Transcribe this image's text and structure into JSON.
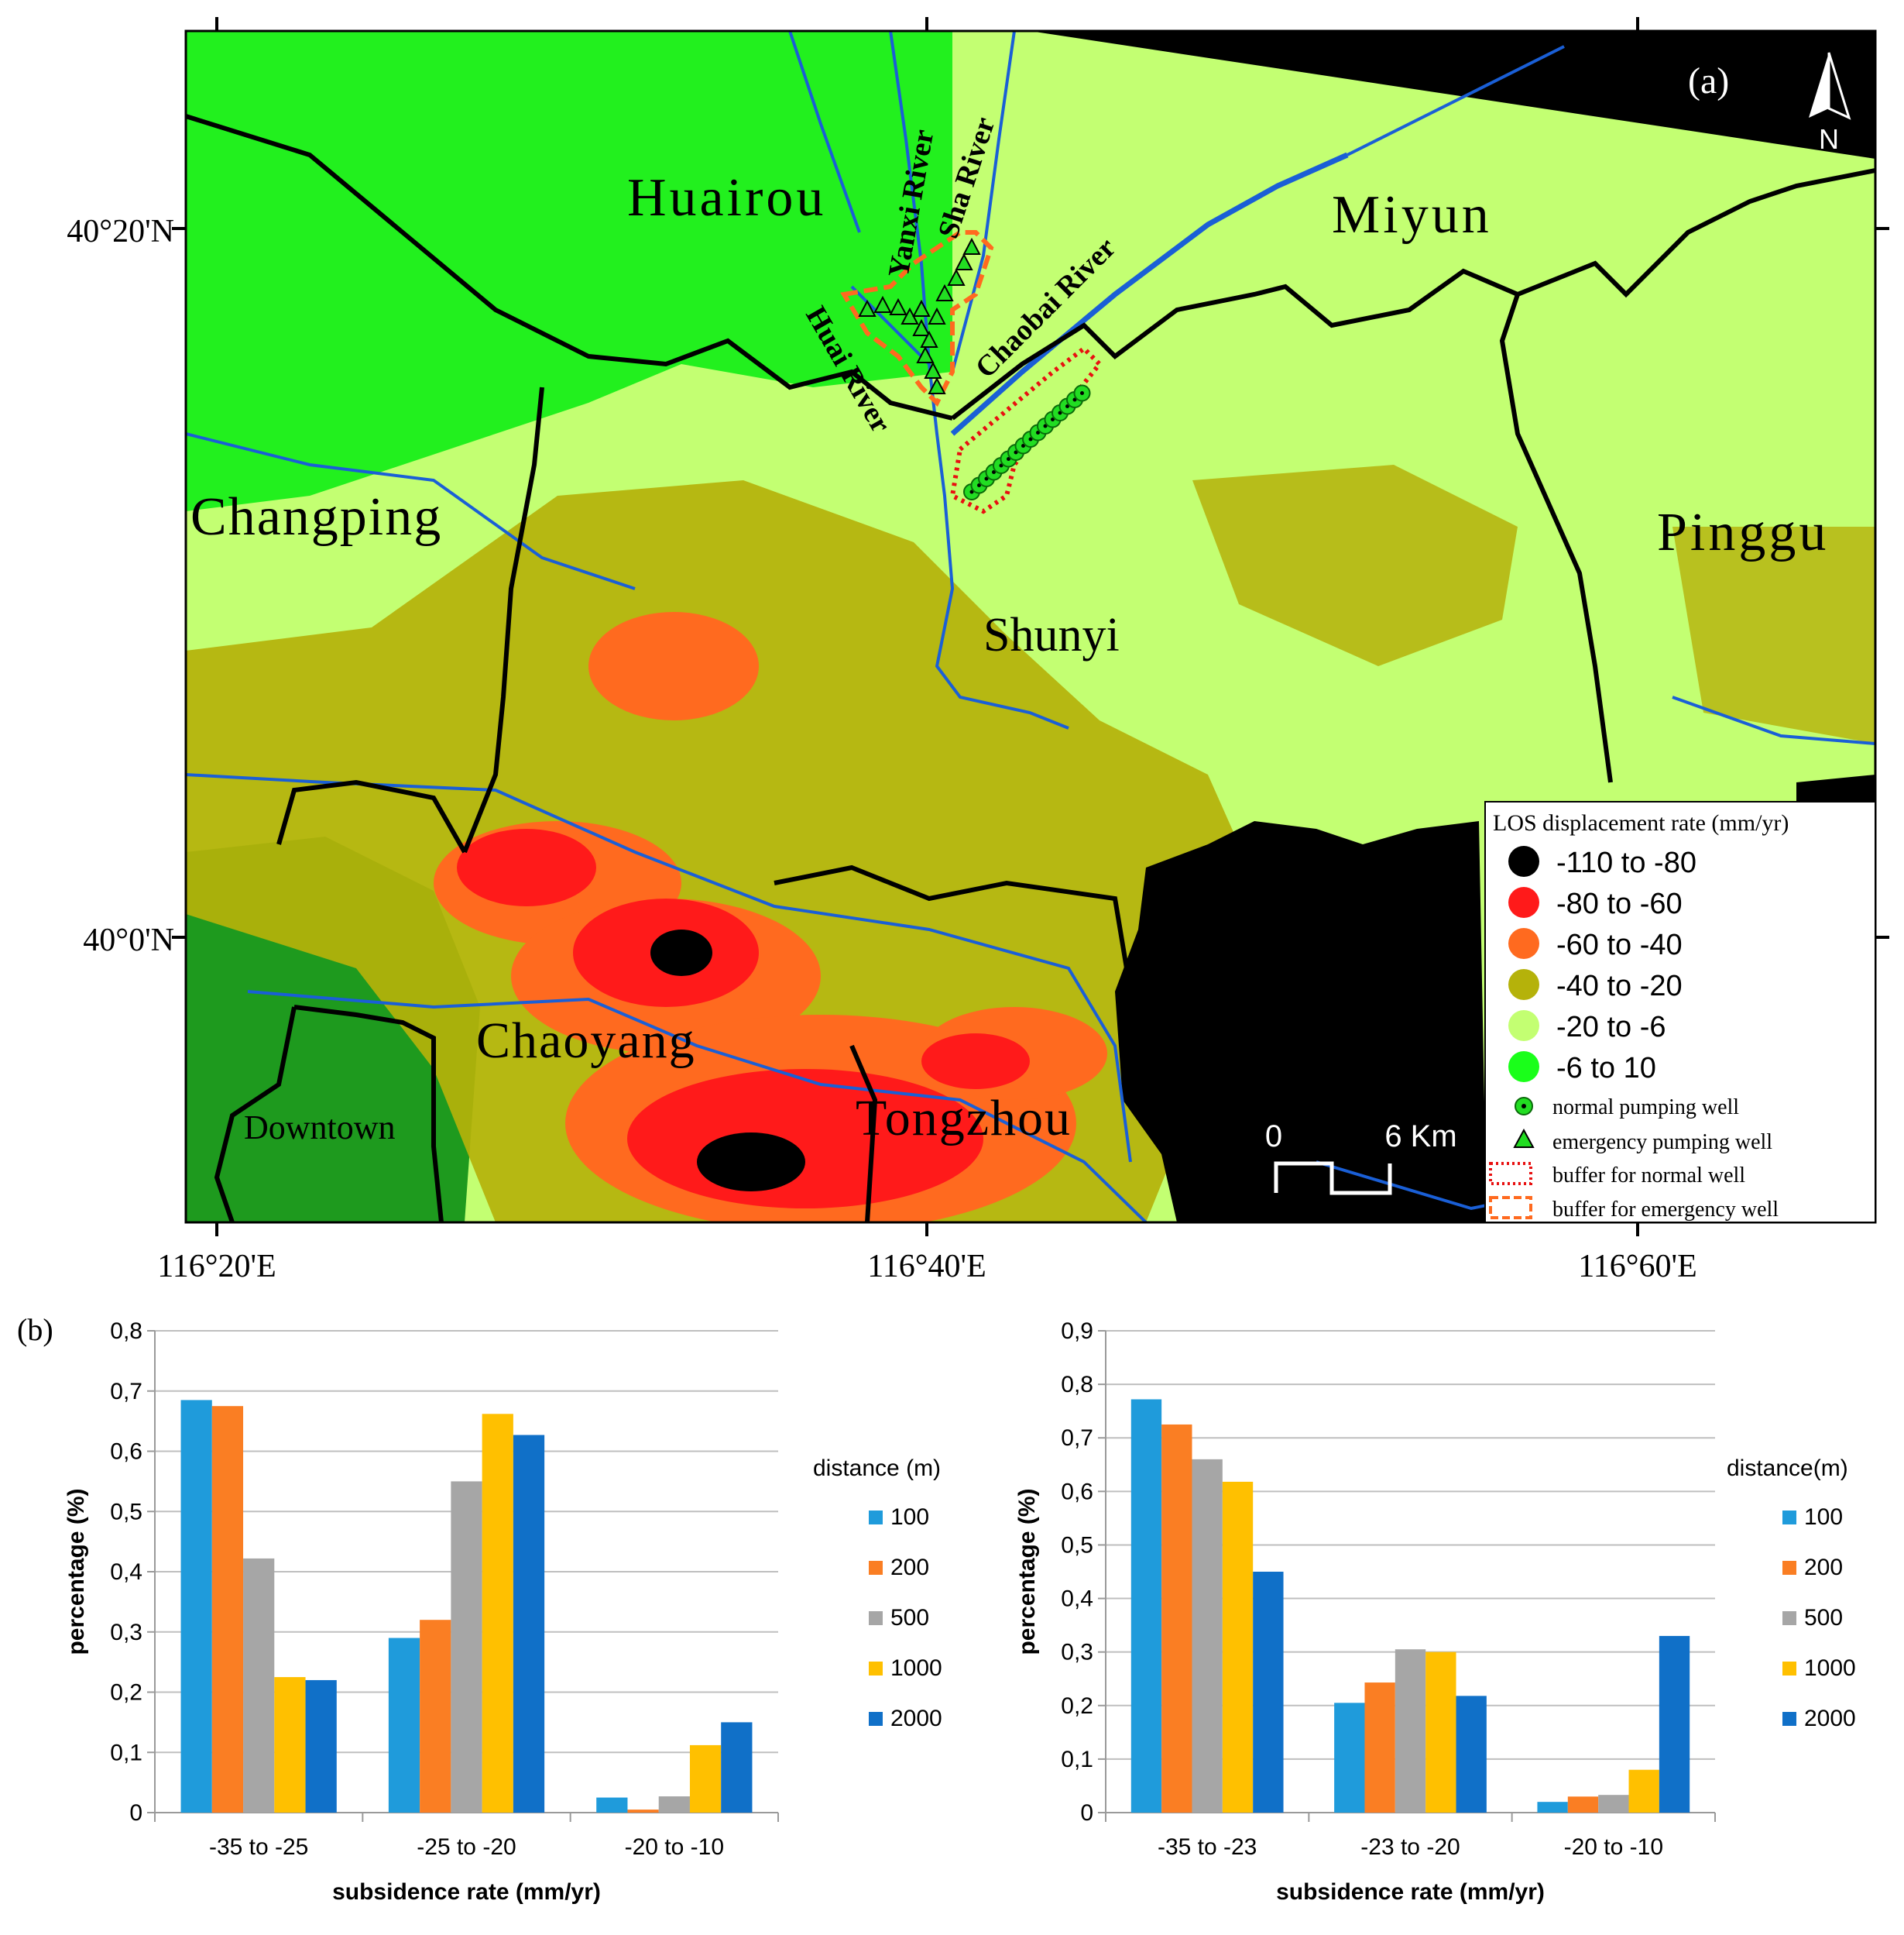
{
  "figure": {
    "panel_a_label": "(a)",
    "panel_b_label": "(b)",
    "north_label": "N"
  },
  "map": {
    "lat_labels": [
      "40°20'N",
      "40°0'N"
    ],
    "lon_labels": [
      "116°20'E",
      "116°40'E",
      "116°60'E"
    ],
    "district_labels": [
      "Huairou",
      "Miyun",
      "Changping",
      "Pinggu",
      "Shunyi",
      "Chaoyang",
      "Tongzhou",
      "Downtown"
    ],
    "river_labels": [
      "Yanxi River",
      "Sha River",
      "Huai River",
      "Chaobai River"
    ],
    "scale_bar": {
      "start": "0",
      "end": "6 Km"
    },
    "legend": {
      "title": "LOS displacement rate (mm/yr)",
      "classes": [
        {
          "label": "-110  to  -80",
          "color": "#000000"
        },
        {
          "label": "-80  to  -60",
          "color": "#ff1a1a"
        },
        {
          "label": "-60  to  -40",
          "color": "#ff6a1f"
        },
        {
          "label": "-40  to  -20",
          "color": "#b5b20a"
        },
        {
          "label": "-20  to  -6",
          "color": "#c3ff72"
        },
        {
          "label": "-6  to  10",
          "color": "#1aff1a"
        }
      ],
      "symbols": [
        {
          "label": "normal pumping well",
          "icon": "green-circle-dot-icon"
        },
        {
          "label": "emergency pumping well",
          "icon": "green-triangle-icon"
        },
        {
          "label": "buffer for normal well",
          "icon": "red-dotted-box-icon"
        },
        {
          "label": "buffer for emergency well",
          "icon": "orange-dashed-box-icon"
        }
      ]
    }
  },
  "chart_data": [
    {
      "type": "bar",
      "categories": [
        "-35 to -25",
        "-25 to -20",
        "-20 to -10"
      ],
      "xlabel": "subsidence rate (mm/yr)",
      "ylabel": "percentage (%)",
      "ylim": [
        0,
        0.8
      ],
      "yticks": [
        "0",
        "0,1",
        "0,2",
        "0,3",
        "0,4",
        "0,5",
        "0,6",
        "0,7",
        "0,8"
      ],
      "grid": true,
      "legend_title": "distance (m)",
      "legend_position": "right",
      "series": [
        {
          "name": "100",
          "color": "#1f9bdb",
          "values": [
            0.685,
            0.29,
            0.025
          ]
        },
        {
          "name": "200",
          "color": "#fa7e23",
          "values": [
            0.675,
            0.32,
            0.005
          ]
        },
        {
          "name": "500",
          "color": "#a6a6a6",
          "values": [
            0.422,
            0.55,
            0.027
          ]
        },
        {
          "name": "1000",
          "color": "#ffc000",
          "values": [
            0.225,
            0.662,
            0.112
          ]
        },
        {
          "name": "2000",
          "color": "#1070c8",
          "values": [
            0.22,
            0.627,
            0.15
          ]
        }
      ]
    },
    {
      "type": "bar",
      "categories": [
        "-35 to -23",
        "-23 to -20",
        "-20 to -10"
      ],
      "xlabel": "subsidence rate (mm/yr)",
      "ylabel": "percentage (%)",
      "ylim": [
        0,
        0.9
      ],
      "yticks": [
        "0",
        "0,1",
        "0,2",
        "0,3",
        "0,4",
        "0,5",
        "0,6",
        "0,7",
        "0,8",
        "0,9"
      ],
      "grid": true,
      "legend_title": "distance(m)",
      "legend_position": "right",
      "series": [
        {
          "name": "100",
          "color": "#1f9bdb",
          "values": [
            0.772,
            0.205,
            0.02
          ]
        },
        {
          "name": "200",
          "color": "#fa7e23",
          "values": [
            0.725,
            0.243,
            0.03
          ]
        },
        {
          "name": "500",
          "color": "#a6a6a6",
          "values": [
            0.66,
            0.305,
            0.033
          ]
        },
        {
          "name": "1000",
          "color": "#ffc000",
          "values": [
            0.618,
            0.3,
            0.08
          ]
        },
        {
          "name": "2000",
          "color": "#1070c8",
          "values": [
            0.45,
            0.218,
            0.33
          ]
        }
      ]
    }
  ]
}
